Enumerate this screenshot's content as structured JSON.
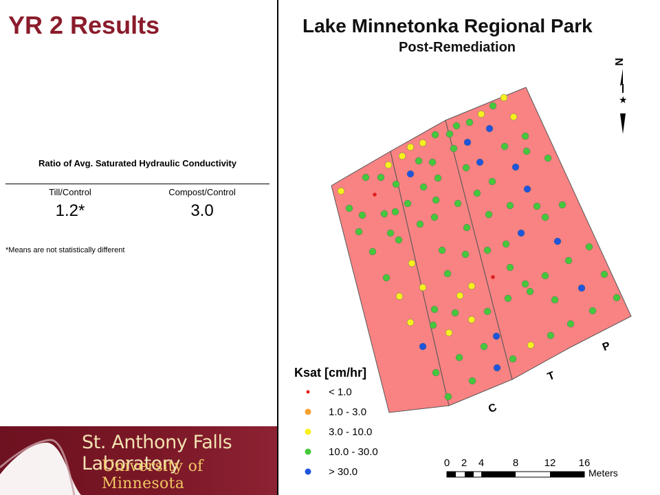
{
  "slide": {
    "title": "YR 2 Results"
  },
  "ratio_table": {
    "title": "Ratio of Avg. Saturated Hydraulic Conductivity",
    "columns": [
      "Till/Control",
      "Compost/Control"
    ],
    "values": [
      "1.2*",
      "3.0"
    ],
    "footnote": "*Means are not statistically different"
  },
  "footer": {
    "line1": "St. Anthony Falls Laboratory",
    "line2": "University of Minnesota"
  },
  "map": {
    "title": "Lake Minnetonka Regional Park",
    "subtitle": "Post-Remediation",
    "north_label": "N",
    "strips": [
      "C",
      "T",
      "P"
    ],
    "plot_fill": "#f98383",
    "legend": {
      "title": "Ksat [cm/hr]",
      "items": [
        {
          "label": "< 1.0",
          "color": "#e02020"
        },
        {
          "label": "1.0 - 3.0",
          "color": "#f5a030"
        },
        {
          "label": "3.0 - 10.0",
          "color": "#f7f01e"
        },
        {
          "label": "10.0 - 30.0",
          "color": "#46c83c"
        },
        {
          "label": "> 30.0",
          "color": "#1e55dc"
        }
      ]
    },
    "scale_bar": {
      "ticks": [
        "0",
        "2",
        "4",
        "8",
        "12",
        "16"
      ],
      "unit": "Meters"
    }
  }
}
